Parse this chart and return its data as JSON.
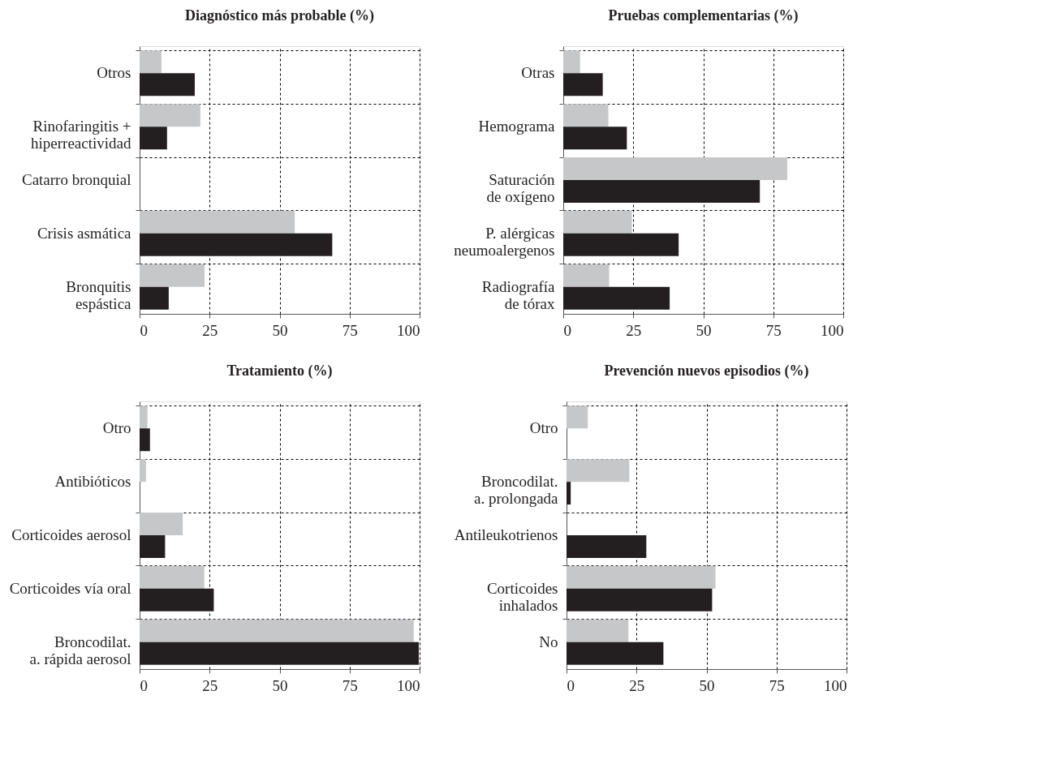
{
  "chart_data": [
    {
      "type": "bar",
      "orientation": "horizontal",
      "title": "Diagnóstico más probable (%)",
      "categories": [
        "Otros",
        "Rinofaringitis +\nhiperreactividad",
        "Catarro bronquial",
        "Crisis asmática",
        "Bronquitis\nespástica"
      ],
      "series": [
        {
          "color": "#c6c7c9",
          "values": [
            7.8,
            21.7,
            null,
            55.4,
            23.2
          ]
        },
        {
          "color": "#231f20",
          "values": [
            19.7,
            9.8,
            null,
            68.8,
            10.4
          ]
        }
      ],
      "xlim": [
        0,
        100
      ],
      "xticks": [
        0,
        25,
        50,
        75,
        100
      ],
      "grid": true,
      "legend": false
    },
    {
      "type": "bar",
      "orientation": "horizontal",
      "title": "Pruebas complementarias (%)",
      "categories": [
        "Otras",
        "Hemograma",
        "Saturación\nde oxígeno",
        "P. alérgicas\nneumoalergenos",
        "Radiografía\nde tórax"
      ],
      "series": [
        {
          "color": "#c6c7c9",
          "values": [
            6,
            16.1,
            80,
            24.5,
            16.4
          ]
        },
        {
          "color": "#231f20",
          "values": [
            14.1,
            22.7,
            70.2,
            41.2,
            38
          ]
        }
      ],
      "xlim": [
        0,
        100
      ],
      "xticks": [
        0,
        25,
        50,
        75,
        100
      ],
      "grid": true,
      "legend": false
    },
    {
      "type": "bar",
      "orientation": "horizontal",
      "title": "Tratamiento (%)",
      "categories": [
        "Otro",
        "Antibióticos",
        "Corticoides aerosol",
        "Corticoides vía oral",
        "Broncodilat.\na. rápida aerosol"
      ],
      "series": [
        {
          "color": "#c6c7c9",
          "values": [
            2.8,
            2.3,
            15.4,
            23.1,
            97.9
          ]
        },
        {
          "color": "#231f20",
          "values": [
            3.7,
            null,
            9.1,
            26.5,
            99.7
          ]
        }
      ],
      "xlim": [
        0,
        100
      ],
      "xticks": [
        0,
        25,
        50,
        75,
        100
      ],
      "grid": true,
      "legend": false
    },
    {
      "type": "bar",
      "orientation": "horizontal",
      "title": "Prevención nuevos episodios  (%)",
      "categories": [
        "Otro",
        "Broncodilat.\na. prolongada",
        "Antileukotrienos",
        "Corticoides\ninhalados",
        "No"
      ],
      "series": [
        {
          "color": "#c6c7c9",
          "values": [
            7.6,
            22.4,
            null,
            53.2,
            22.1
          ]
        },
        {
          "color": "#231f20",
          "values": [
            null,
            1.5,
            28.5,
            52,
            34.6
          ]
        }
      ],
      "xlim": [
        0,
        100
      ],
      "xticks": [
        0,
        25,
        50,
        75,
        100
      ],
      "grid": true,
      "legend": false
    }
  ]
}
